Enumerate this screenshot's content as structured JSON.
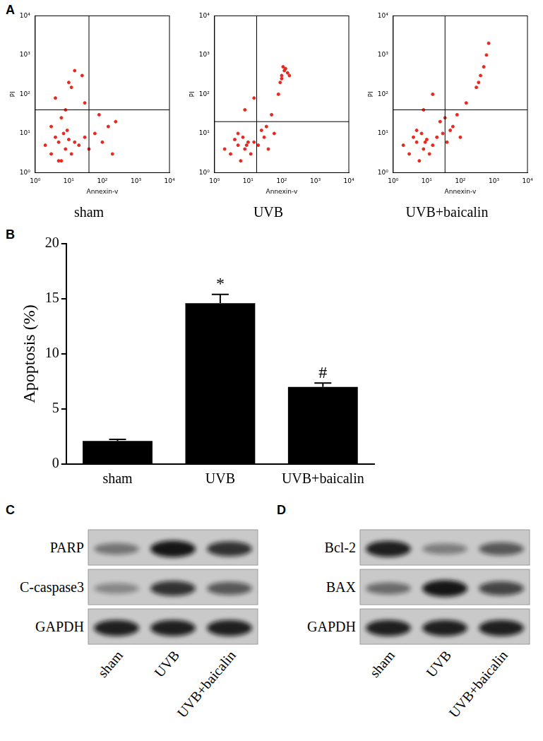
{
  "panel_labels": [
    "A",
    "B",
    "C",
    "D"
  ],
  "chart_data": [
    {
      "type": "scatter",
      "title": "sham",
      "x_label": "Annexin-v",
      "y_label": "PI",
      "log": true,
      "grid": false,
      "color": "#e8281e",
      "xlim": [
        1,
        10000
      ],
      "ylim": [
        1,
        10000
      ],
      "xticks": [
        {
          "value": 1,
          "label": "10⁰"
        },
        {
          "value": 10,
          "label": "10¹"
        },
        {
          "value": 100,
          "label": "10²"
        },
        {
          "value": 1000,
          "label": "10³"
        },
        {
          "value": 10000,
          "label": "10⁴"
        }
      ],
      "yticks": [
        {
          "value": 1,
          "label": "10⁰"
        },
        {
          "value": 10,
          "label": "10¹"
        },
        {
          "value": 100,
          "label": "10²"
        },
        {
          "value": 1000,
          "label": "10³"
        },
        {
          "value": 10000,
          "label": "10⁴"
        }
      ],
      "quadrant": {
        "x": 40,
        "y": 40
      },
      "x": [
        3,
        5,
        8,
        4,
        6,
        10,
        2,
        7,
        12,
        15,
        9,
        5,
        3,
        20,
        30,
        60,
        100,
        150,
        250,
        40,
        8,
        12,
        25,
        6,
        4,
        80,
        15,
        30,
        200,
        10
      ],
      "values": [
        3,
        6,
        4,
        8,
        2,
        7,
        5,
        10,
        3,
        6,
        12,
        2,
        15,
        5,
        8,
        10,
        6,
        15,
        20,
        4,
        40,
        150,
        300,
        25,
        80,
        30,
        400,
        60,
        3,
        200
      ]
    },
    {
      "type": "scatter",
      "title": "UVB",
      "x_label": "Annexin-v",
      "y_label": "PI",
      "log": true,
      "grid": false,
      "color": "#e8281e",
      "xlim": [
        1,
        10000
      ],
      "ylim": [
        1,
        10000
      ],
      "xticks": [
        {
          "value": 1,
          "label": "10⁰"
        },
        {
          "value": 10,
          "label": "10¹"
        },
        {
          "value": 100,
          "label": "10²"
        },
        {
          "value": 1000,
          "label": "10³"
        },
        {
          "value": 10000,
          "label": "10⁴"
        }
      ],
      "yticks": [
        {
          "value": 1,
          "label": "10⁰"
        },
        {
          "value": 10,
          "label": "10¹"
        },
        {
          "value": 100,
          "label": "10²"
        },
        {
          "value": 1000,
          "label": "10³"
        },
        {
          "value": 10000,
          "label": "10⁴"
        }
      ],
      "quadrant": {
        "x": 18,
        "y": 20
      },
      "x": [
        3,
        5,
        8,
        4,
        6,
        10,
        2,
        7,
        12,
        9,
        5,
        15,
        20,
        30,
        40,
        60,
        25,
        50,
        80,
        100,
        120,
        150,
        100,
        90,
        130,
        170,
        110,
        8,
        15,
        35
      ],
      "values": [
        3,
        5,
        4,
        7,
        2,
        6,
        4,
        8,
        3,
        5,
        10,
        6,
        5,
        8,
        4,
        10,
        12,
        30,
        100,
        300,
        400,
        350,
        250,
        200,
        450,
        300,
        500,
        40,
        80,
        15
      ]
    },
    {
      "type": "scatter",
      "title": "UVB+baicalin",
      "x_label": "Annexin-v",
      "y_label": "PI",
      "log": true,
      "grid": false,
      "color": "#e8281e",
      "xlim": [
        1,
        10000
      ],
      "ylim": [
        1,
        10000
      ],
      "xticks": [
        {
          "value": 1,
          "label": "10⁰"
        },
        {
          "value": 10,
          "label": "10¹"
        },
        {
          "value": 100,
          "label": "10²"
        },
        {
          "value": 1000,
          "label": "10³"
        },
        {
          "value": 10000,
          "label": "10⁴"
        }
      ],
      "yticks": [
        {
          "value": 1,
          "label": "10⁰"
        },
        {
          "value": 10,
          "label": "10¹"
        },
        {
          "value": 100,
          "label": "10²"
        },
        {
          "value": 1000,
          "label": "10³"
        },
        {
          "value": 10000,
          "label": "10⁴"
        }
      ],
      "quadrant": {
        "x": 35,
        "y": 40
      },
      "x": [
        3,
        5,
        8,
        4,
        6,
        10,
        2,
        7,
        12,
        9,
        5,
        15,
        20,
        30,
        40,
        60,
        25,
        50,
        80,
        150,
        300,
        400,
        500,
        600,
        700,
        350,
        8,
        15,
        35,
        100
      ],
      "values": [
        3,
        6,
        4,
        8,
        2,
        7,
        5,
        10,
        3,
        6,
        12,
        5,
        8,
        10,
        6,
        15,
        20,
        12,
        30,
        60,
        150,
        300,
        500,
        1000,
        2000,
        200,
        40,
        100,
        25,
        8
      ]
    },
    {
      "type": "bar",
      "y_label": "Apoptosis (%)",
      "grid": false,
      "color": "#000000",
      "categories": [
        "sham",
        "UVB",
        "UVB+baicalin"
      ],
      "values": [
        2.1,
        14.6,
        7.0
      ],
      "errors": [
        0.15,
        0.8,
        0.35
      ],
      "ylim": [
        0,
        20
      ],
      "yticks": [
        0,
        5,
        10,
        15,
        20
      ],
      "annotations": [
        {
          "category": "UVB",
          "text": "*"
        },
        {
          "category": "UVB+baicalin",
          "text": "#"
        }
      ]
    }
  ],
  "blots": [
    {
      "lanes": [
        "sham",
        "UVB",
        "UVB+baicalin"
      ],
      "rows": [
        {
          "label": "PARP",
          "intensity": [
            0.45,
            0.95,
            0.8
          ]
        },
        {
          "label": "C-caspase3",
          "intensity": [
            0.35,
            0.8,
            0.6
          ]
        },
        {
          "label": "GAPDH",
          "intensity": [
            0.9,
            0.9,
            0.9
          ]
        }
      ]
    },
    {
      "lanes": [
        "sham",
        "UVB",
        "UVB+baicalin"
      ],
      "rows": [
        {
          "label": "Bcl-2",
          "intensity": [
            0.9,
            0.4,
            0.6
          ]
        },
        {
          "label": "BAX",
          "intensity": [
            0.5,
            0.95,
            0.7
          ]
        },
        {
          "label": "GAPDH",
          "intensity": [
            0.9,
            0.9,
            0.9
          ]
        }
      ]
    }
  ]
}
